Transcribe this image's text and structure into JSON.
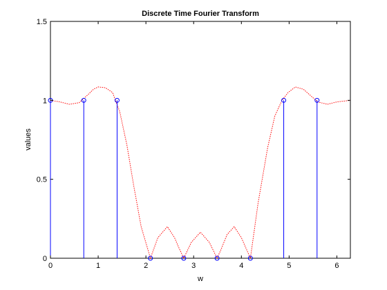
{
  "chart_data": {
    "type": "line",
    "title": "Discrete Time Fourier Transform",
    "xlabel": "w",
    "ylabel": "values",
    "xlim": [
      0,
      6.2832
    ],
    "ylim": [
      0,
      1.5
    ],
    "x_ticks": [
      0,
      1,
      2,
      3,
      4,
      5,
      6
    ],
    "y_ticks": [
      0,
      0.5,
      1,
      1.5
    ],
    "grid": false,
    "series": [
      {
        "kind": "line",
        "color": "#ff0000",
        "style": "dotted",
        "x": [
          0,
          0.2,
          0.4,
          0.6,
          0.8,
          0.9,
          1.0,
          1.15,
          1.3,
          1.45,
          1.6,
          1.75,
          1.9,
          2.0944,
          2.25,
          2.45,
          2.6,
          2.7,
          2.7925,
          2.95,
          3.1416,
          3.33,
          3.4907,
          3.58,
          3.7,
          3.85,
          4.0,
          4.1888,
          4.35,
          4.55,
          4.7,
          4.85,
          4.98,
          5.13,
          5.3,
          5.45,
          5.6,
          5.8,
          6.0,
          6.2832
        ],
        "y": [
          1.0,
          0.99,
          0.975,
          0.985,
          1.04,
          1.07,
          1.085,
          1.08,
          1.05,
          0.93,
          0.72,
          0.45,
          0.2,
          0.0,
          0.13,
          0.2,
          0.13,
          0.06,
          0.0,
          0.1,
          0.165,
          0.1,
          0.0,
          0.06,
          0.15,
          0.2,
          0.13,
          0.0,
          0.35,
          0.7,
          0.9,
          1.0,
          1.05,
          1.085,
          1.07,
          1.03,
          0.99,
          0.975,
          0.99,
          1.0
        ]
      },
      {
        "kind": "stem",
        "color": "#0000ff",
        "marker": "circle",
        "x": [
          0,
          0.6981,
          1.3963,
          2.0944,
          2.7925,
          3.4907,
          4.1888,
          4.8869,
          5.5851
        ],
        "y": [
          1,
          1,
          1,
          0,
          0,
          0,
          0,
          1,
          1
        ]
      }
    ]
  }
}
